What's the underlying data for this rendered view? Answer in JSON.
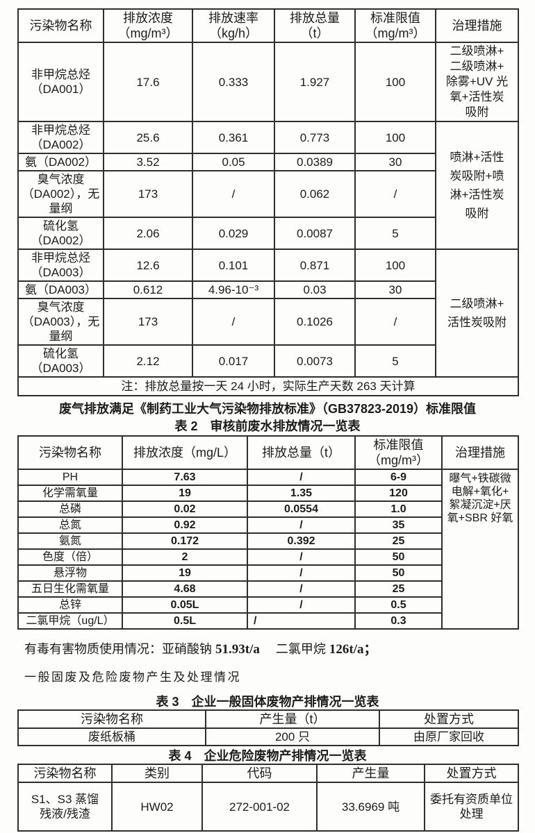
{
  "colors": {
    "text": "#1b1b1b",
    "border": "#2e2e2e",
    "paper": "#fdfdfc"
  },
  "table1": {
    "headers": [
      "污染物名称",
      "排放浓度\n（mg/m³）",
      "排放速率\n（kg/h）",
      "排放总量\n（t）",
      "标准限值\n（mg/m³）",
      "治理措施"
    ],
    "rows": [
      [
        "非甲烷总烃\n（DA001）",
        "17.6",
        "0.333",
        "1.927",
        "100",
        {
          "t": "二级喷淋+\n二级喷淋+\n除雾+UV 光\n氧+活性炭\n吸附",
          "cls": "treat lh22"
        }
      ],
      [
        "非甲烷总烃\n（DA002）",
        "25.6",
        "0.361",
        "0.773",
        "100",
        {
          "t": "喷淋+活性\n炭吸附+喷\n淋+活性炭\n吸附",
          "rs": 4,
          "cls": "treat"
        }
      ],
      [
        "氨（DA002）",
        "3.52",
        "0.05",
        "0.0389",
        "30"
      ],
      [
        "臭气浓度\n（DA002），无\n量纲",
        "173",
        "/",
        "0.062",
        "/"
      ],
      [
        "硫化氢\n（DA002）",
        "2.06",
        "0.029",
        "0.0087",
        "5"
      ],
      [
        "非甲烷总烃\n（DA003）",
        "12.6",
        "0.101",
        "0.871",
        "100",
        {
          "t": "二级喷淋+\n活性炭吸附",
          "rs": 4,
          "cls": "treat"
        }
      ],
      [
        "氨（DA003）",
        "0.612",
        "4.96-10⁻³",
        "0.03",
        "30"
      ],
      [
        "臭气浓度\n（DA003），无\n量纲",
        "173",
        "/",
        "0.1026",
        "/"
      ],
      [
        "硫化氢\n（DA003）",
        "2.12",
        "0.017",
        "0.0073",
        "5"
      ]
    ],
    "note": "注：排放总量按一天 24 小时，实际生产天数 263 天计算"
  },
  "para_gas_standard": "废气排放满足《制药工业大气污染物排放标准》（GB37823-2019）标准限值",
  "table2_title": "表 2　审核前废水排放情况一览表",
  "table2": {
    "headers": [
      "污染物名称",
      "排放浓度（mg/L）",
      "排放总量（t）",
      "标准限值\n（mg/m³）",
      "治理措施"
    ],
    "rows": [
      [
        "PH",
        "7.63",
        "/",
        "6-9",
        {
          "t": "曝气+铁碳微\n电解+氧化+\n絮凝沉淀+厌\n氧+SBR 好氧",
          "rs": 10,
          "cls": "t2t top"
        }
      ],
      [
        "化学需氧量",
        "19",
        "1.35",
        "120"
      ],
      [
        "总磷",
        "0.02",
        "0.0554",
        "1.0"
      ],
      [
        "总氮",
        "0.92",
        "/",
        "35"
      ],
      [
        "氨氮",
        "0.172",
        "0.392",
        "25"
      ],
      [
        "色度（倍）",
        "2",
        "/",
        "50"
      ],
      [
        "悬浮物",
        "19",
        "/",
        "50"
      ],
      [
        "五日生化需氧量",
        "4.68",
        "/",
        "25"
      ],
      [
        "总锌",
        "0.05L",
        "/",
        "0.5"
      ],
      [
        "二氯甲烷（ug/L）",
        "0.5L",
        {
          "t": "/",
          "cls": "left"
        },
        "0.3"
      ]
    ]
  },
  "para_toxic": {
    "prefix": "有毒有害物质使用情况：亚硝酸钠 ",
    "value1": "51.93t/a",
    "mid": "　 二氯甲烷 ",
    "value2": "126t/a；"
  },
  "para_solid": "一般固废及危险废物产生及处理情况",
  "table3_title": "表 3　企业一般固体废物产排情况一览表",
  "table3": {
    "headers": [
      "污染物名称",
      "产生量（t）",
      "处置方式"
    ],
    "rows": [
      [
        "废纸板桶",
        "200 只",
        "由原厂家回收"
      ]
    ]
  },
  "table4_title": "表 4　企业危险废物产排情况一览表",
  "table4": {
    "headers": [
      "污染物名称",
      "类别",
      "代码",
      "产生量",
      "处置方式"
    ],
    "rows": [
      [
        "S1、S3 蒸馏\n残液/残渣",
        "HW02",
        "272-001-02",
        "33.6969 吨",
        "委托有资质单位\n处理"
      ]
    ]
  }
}
